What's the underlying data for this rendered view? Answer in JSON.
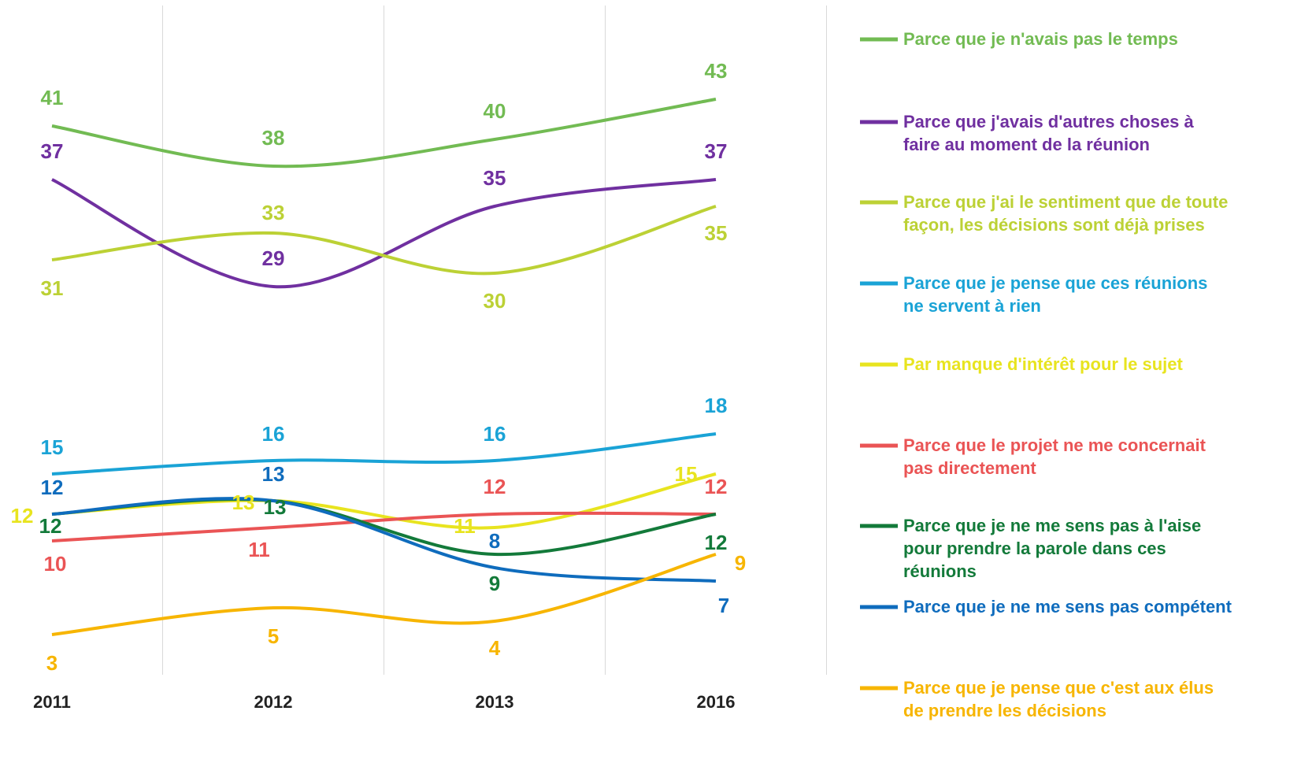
{
  "chart_data": {
    "type": "line",
    "categories": [
      "2011",
      "2012",
      "2013",
      "2016"
    ],
    "ylim": [
      0,
      50
    ],
    "series": [
      {
        "name": "Parce que je n'avais pas le temps",
        "color": "#72bb53",
        "values": [
          41,
          38,
          40,
          43
        ]
      },
      {
        "name": "Parce que j'avais d'autres choses à faire au moment de la réunion",
        "color": "#7030a0",
        "values": [
          37,
          29,
          35,
          37
        ]
      },
      {
        "name": "Parce que j'ai le sentiment que de toute façon, les décisions sont déjà prises",
        "color": "#bcd135",
        "values": [
          31,
          33,
          30,
          35
        ]
      },
      {
        "name": "Parce que je pense que ces réunions ne servent à rien",
        "color": "#1aa3d6",
        "values": [
          15,
          16,
          16,
          18
        ]
      },
      {
        "name": "Par manque d'intérêt pour le sujet",
        "color": "#e8e41f",
        "values": [
          12,
          13,
          11,
          15
        ]
      },
      {
        "name": "Parce que le projet ne me concernait pas directement",
        "color": "#ea5455",
        "values": [
          10,
          11,
          12,
          12
        ]
      },
      {
        "name": "Parce que je ne me sens pas à l'aise pour prendre la parole dans ces réunions",
        "color": "#137a3a",
        "values": [
          12,
          13,
          9,
          12
        ]
      },
      {
        "name": "Parce que je ne me sens pas compétent",
        "color": "#0f6cbd",
        "values": [
          12,
          13,
          8,
          7
        ]
      },
      {
        "name": "Parce que je pense que c'est aux élus de prendre les décisions",
        "color": "#f7b500",
        "values": [
          3,
          5,
          4,
          9
        ]
      }
    ]
  }
}
